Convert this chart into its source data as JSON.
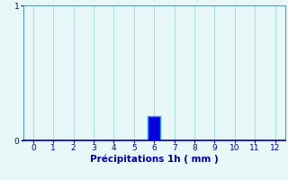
{
  "title": "",
  "xlabel": "Précipitations 1h ( mm )",
  "ylabel": "",
  "xlim": [
    -0.5,
    12.5
  ],
  "ylim": [
    0,
    1.0
  ],
  "yticks": [
    0,
    1
  ],
  "xticks": [
    0,
    1,
    2,
    3,
    4,
    5,
    6,
    7,
    8,
    9,
    10,
    11,
    12
  ],
  "bar_x": [
    6
  ],
  "bar_height": [
    0.18
  ],
  "bar_color": "#0000dd",
  "bar_edge_color": "#3399ff",
  "bar_width": 0.6,
  "background_color": "#e8f8f8",
  "grid_color": "#aadddd",
  "axis_color": "#6699aa",
  "tick_color": "#0000aa",
  "label_color": "#0000aa",
  "label_fontsize": 7.5,
  "tick_fontsize": 6.5
}
